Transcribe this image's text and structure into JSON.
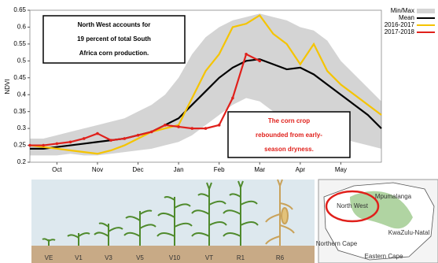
{
  "chart_data": {
    "type": "line",
    "y_label": "NDVI",
    "x": [
      0,
      1,
      2,
      3,
      4,
      5,
      6,
      7,
      8,
      9,
      10,
      11,
      12,
      13,
      14,
      15,
      16,
      17,
      18,
      19,
      20,
      21,
      22,
      23,
      24,
      25,
      26
    ],
    "xlim": [
      0,
      26
    ],
    "xticks": [
      {
        "value": 2,
        "label": "Oct"
      },
      {
        "value": 5,
        "label": "Nov"
      },
      {
        "value": 8,
        "label": "Dec"
      },
      {
        "value": 11,
        "label": "Jan"
      },
      {
        "value": 14,
        "label": "Feb"
      },
      {
        "value": 17,
        "label": "Mar"
      },
      {
        "value": 20,
        "label": "Apr"
      },
      {
        "value": 23,
        "label": "May"
      }
    ],
    "ylim": [
      0.2,
      0.65
    ],
    "yticks": [
      0.2,
      0.25,
      0.3,
      0.35,
      0.4,
      0.45,
      0.5,
      0.55,
      0.6,
      0.65
    ],
    "band": {
      "name": "Min/Max",
      "color": "#d4d4d4",
      "upper": [
        0.27,
        0.27,
        0.28,
        0.29,
        0.3,
        0.31,
        0.32,
        0.33,
        0.35,
        0.37,
        0.4,
        0.45,
        0.52,
        0.57,
        0.6,
        0.62,
        0.63,
        0.64,
        0.63,
        0.62,
        0.6,
        0.59,
        0.56,
        0.5,
        0.46,
        0.42,
        0.38
      ],
      "lower": [
        0.22,
        0.22,
        0.22,
        0.225,
        0.22,
        0.22,
        0.225,
        0.23,
        0.235,
        0.24,
        0.25,
        0.26,
        0.28,
        0.31,
        0.34,
        0.37,
        0.39,
        0.38,
        0.35,
        0.34,
        0.33,
        0.3,
        0.28,
        0.27,
        0.26,
        0.25,
        0.24
      ]
    },
    "series": [
      {
        "name": "Mean",
        "color": "#000000",
        "values": [
          0.24,
          0.24,
          0.245,
          0.25,
          0.255,
          0.26,
          0.265,
          0.27,
          0.28,
          0.29,
          0.31,
          0.33,
          0.37,
          0.41,
          0.45,
          0.48,
          0.5,
          0.505,
          0.49,
          0.475,
          0.48,
          0.46,
          0.43,
          0.4,
          0.37,
          0.34,
          0.3
        ]
      },
      {
        "name": "2016-2017",
        "color": "#f5c400",
        "values": [
          0.25,
          0.245,
          0.24,
          0.235,
          0.23,
          0.225,
          0.235,
          0.25,
          0.27,
          0.29,
          0.3,
          0.31,
          0.39,
          0.47,
          0.52,
          0.6,
          0.61,
          0.635,
          0.58,
          0.55,
          0.49,
          0.55,
          0.47,
          0.43,
          0.4,
          0.37,
          0.34
        ]
      },
      {
        "name": "2017-2018",
        "color": "#e0201b",
        "values": [
          0.25,
          0.25,
          0.255,
          0.26,
          0.27,
          0.285,
          0.265,
          0.27,
          0.28,
          0.29,
          0.31,
          0.305,
          0.3,
          0.3,
          0.31,
          0.39,
          0.52,
          0.5,
          null,
          null,
          null,
          null,
          null,
          null,
          null,
          null,
          null
        ]
      }
    ],
    "annotations": [
      {
        "lines": [
          "North West accounts for",
          "19 percent of total South",
          "Africa corn production."
        ]
      },
      {
        "lines": [
          "The corn crop",
          "rebounded from early-",
          "season dryness."
        ]
      }
    ],
    "stages": [
      "VE",
      "V1",
      "V3",
      "V5",
      "V10",
      "VT",
      "R1",
      "R6"
    ],
    "map_labels": [
      "North West",
      "Mpumalanga",
      "KwaZulu-Natal",
      "Northern Cape",
      "Eastern Cape"
    ]
  }
}
